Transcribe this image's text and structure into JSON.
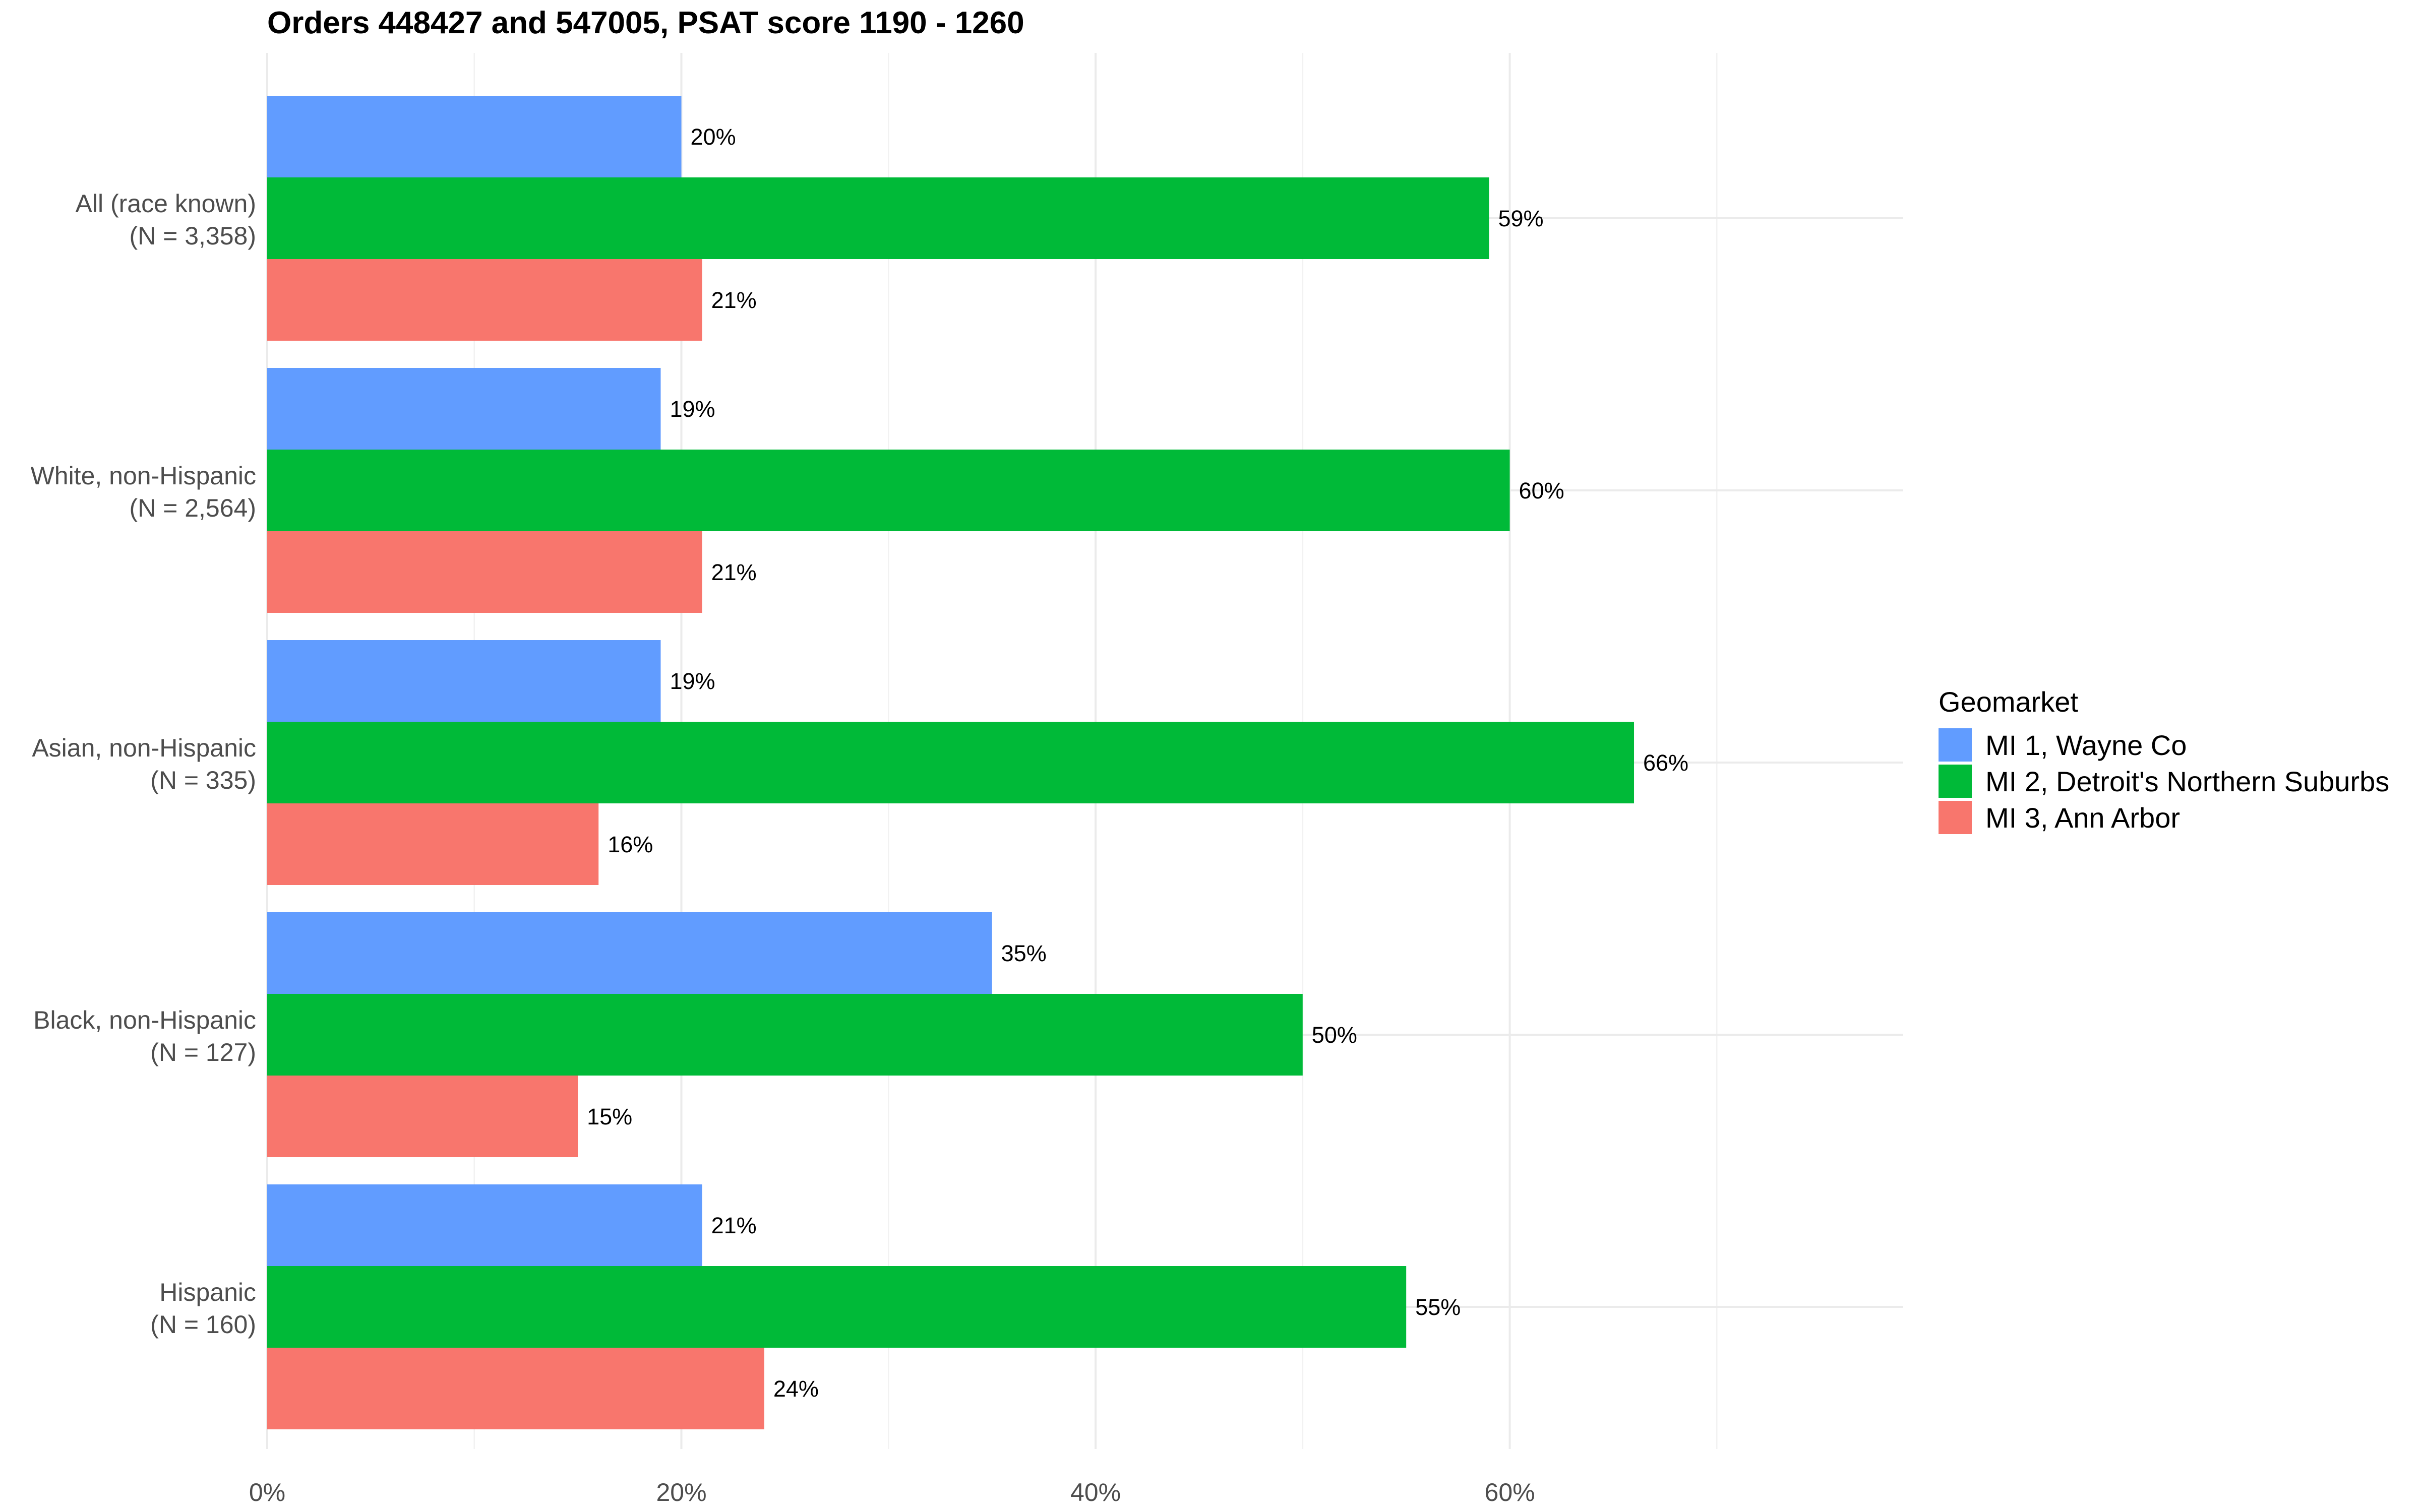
{
  "chart_data": {
    "type": "bar",
    "orientation": "horizontal",
    "title": "Orders 448427 and 547005, PSAT score 1190 - 1260",
    "categories": [
      [
        "All (race known)",
        "(N = 3,358)"
      ],
      [
        "White, non-Hispanic",
        "(N = 2,564)"
      ],
      [
        "Asian, non-Hispanic",
        "(N = 335)"
      ],
      [
        "Black, non-Hispanic",
        "(N = 127)"
      ],
      [
        "Hispanic",
        "(N = 160)"
      ]
    ],
    "series": [
      {
        "name": "MI 1, Wayne Co",
        "color": "#619CFF",
        "values": [
          20,
          19,
          19,
          35,
          21
        ],
        "labels": [
          "20%",
          "19%",
          "19%",
          "35%",
          "21%"
        ]
      },
      {
        "name": "MI 2, Detroit's Northern Suburbs",
        "color": "#00BA38",
        "values": [
          59,
          60,
          66,
          50,
          55
        ],
        "labels": [
          "59%",
          "60%",
          "66%",
          "50%",
          "55%"
        ]
      },
      {
        "name": "MI 3, Ann Arbor",
        "color": "#F8766D",
        "values": [
          21,
          21,
          16,
          15,
          24
        ],
        "labels": [
          "21%",
          "21%",
          "16%",
          "15%",
          "24%"
        ]
      }
    ],
    "xlim": [
      0,
      79
    ],
    "xticks": [
      0,
      20,
      40,
      60
    ],
    "xtick_labels": [
      "0%",
      "20%",
      "40%",
      "60%"
    ],
    "xlabel": "",
    "ylabel": "",
    "grid": true,
    "legend": {
      "title": "Geomarket",
      "position": "right"
    }
  }
}
